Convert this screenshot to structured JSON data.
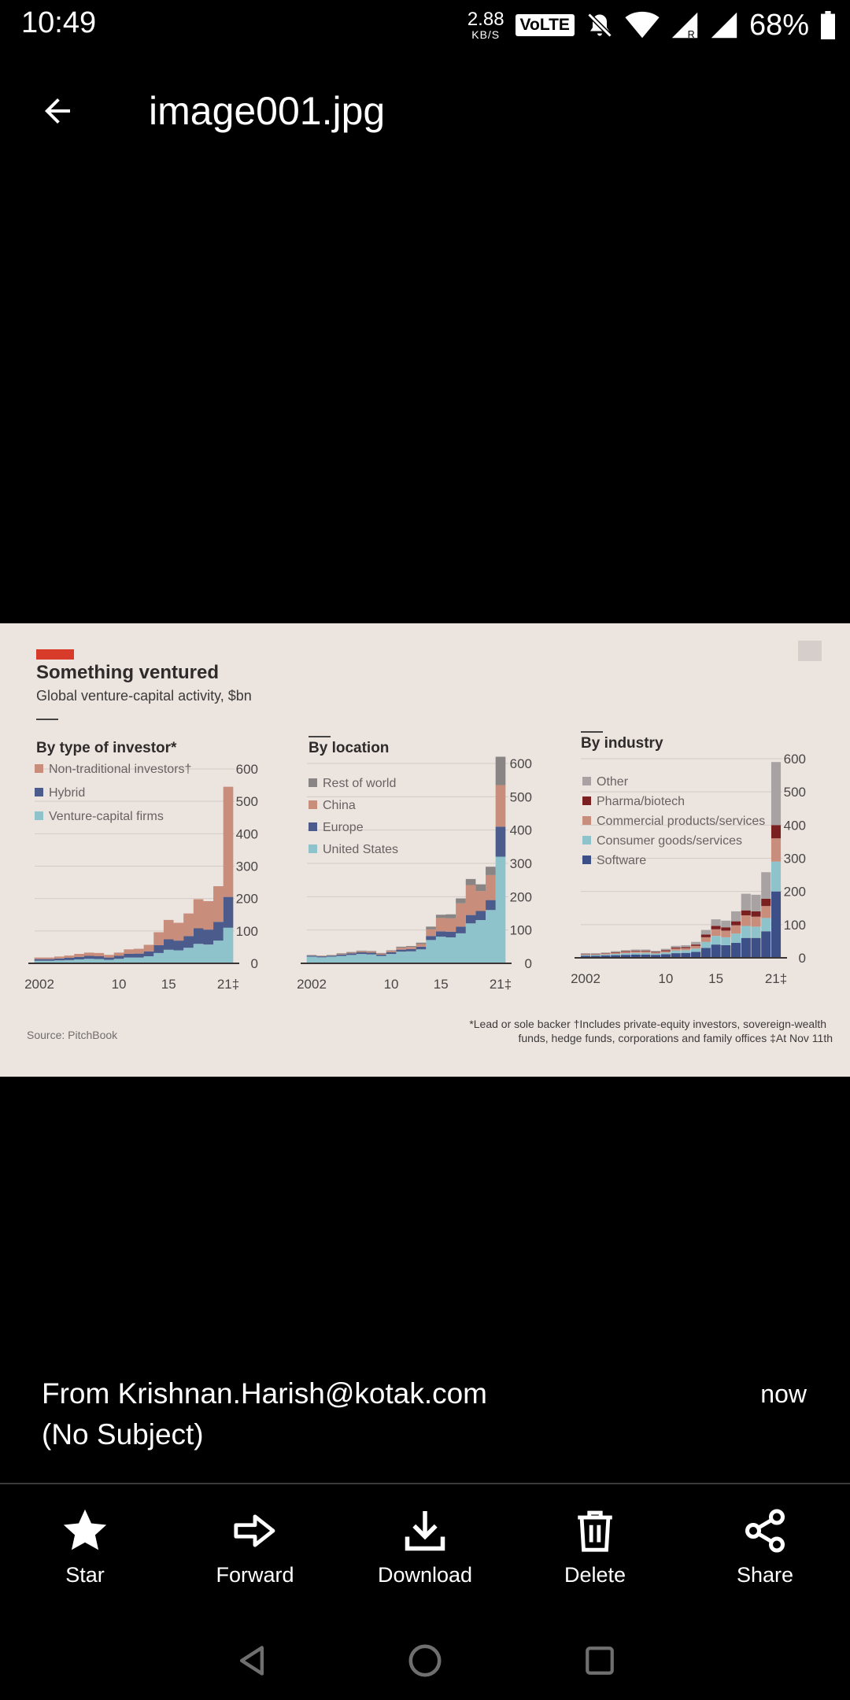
{
  "status_bar": {
    "time": "10:49",
    "speed_value": "2.88",
    "speed_unit": "KB/S",
    "volte": "VoLTE",
    "battery": "68%"
  },
  "app_bar": {
    "title": "image001.jpg"
  },
  "image": {
    "chart_data": [
      {
        "type": "area",
        "panel": "By type of investor*",
        "title": "Something ventured",
        "subtitle": "Global venture-capital activity, $bn",
        "x_tick_labels": [
          "2002",
          "10",
          "15",
          "21‡"
        ],
        "y_ticks": [
          "600",
          "500",
          "400",
          "300",
          "200",
          "100",
          "0"
        ],
        "ylim": [
          0,
          600
        ],
        "x": [
          2002,
          2003,
          2004,
          2005,
          2006,
          2007,
          2008,
          2009,
          2010,
          2011,
          2012,
          2013,
          2014,
          2015,
          2016,
          2017,
          2018,
          2019,
          2020,
          2021
        ],
        "series": [
          {
            "name": "Venture-capital firms",
            "color": "#8fc3cc",
            "values": [
              8,
              8,
              9,
              10,
              12,
              14,
              13,
              11,
              14,
              18,
              18,
              22,
              32,
              42,
              40,
              48,
              60,
              58,
              70,
              110
            ]
          },
          {
            "name": "Hybrid",
            "color": "#4a5b8c",
            "values": [
              5,
              5,
              6,
              7,
              8,
              9,
              9,
              7,
              9,
              11,
              12,
              15,
              24,
              32,
              30,
              36,
              48,
              46,
              58,
              95
            ]
          },
          {
            "name": "Non-traditional investors†",
            "color": "#c98d7c",
            "values": [
              5,
              5,
              6,
              7,
              9,
              10,
              10,
              8,
              10,
              14,
              15,
              20,
              40,
              60,
              55,
              70,
              90,
              88,
              110,
              340
            ]
          }
        ],
        "legend": [
          "Non-traditional investors†",
          "Hybrid",
          "Venture-capital firms"
        ]
      },
      {
        "type": "area",
        "panel": "By location",
        "x_tick_labels": [
          "2002",
          "10",
          "15",
          "21‡"
        ],
        "y_ticks": [
          "600",
          "500",
          "400",
          "300",
          "200",
          "100",
          "0"
        ],
        "ylim": [
          0,
          600
        ],
        "x": [
          2002,
          2003,
          2004,
          2005,
          2006,
          2007,
          2008,
          2009,
          2010,
          2011,
          2012,
          2013,
          2014,
          2015,
          2016,
          2017,
          2018,
          2019,
          2020,
          2021
        ],
        "series": [
          {
            "name": "United States",
            "color": "#8fc3cc",
            "values": [
              20,
              18,
              20,
              22,
              25,
              28,
              27,
              22,
              28,
              35,
              36,
              42,
              70,
              80,
              78,
              90,
              120,
              130,
              160,
              320
            ]
          },
          {
            "name": "Europe",
            "color": "#4a5b8c",
            "values": [
              3,
              3,
              3,
              4,
              5,
              5,
              5,
              4,
              5,
              6,
              7,
              8,
              12,
              16,
              17,
              20,
              25,
              27,
              30,
              90
            ]
          },
          {
            "name": "China",
            "color": "#c98d7c",
            "values": [
              1,
              1,
              1,
              2,
              2,
              3,
              3,
              3,
              4,
              6,
              6,
              8,
              20,
              40,
              40,
              70,
              90,
              60,
              75,
              125
            ]
          },
          {
            "name": "Rest of world",
            "color": "#8a8585",
            "values": [
              1,
              1,
              1,
              2,
              2,
              2,
              2,
              2,
              2,
              3,
              3,
              4,
              8,
              10,
              12,
              15,
              18,
              20,
              25,
              85
            ]
          }
        ],
        "legend": [
          "Rest of world",
          "China",
          "Europe",
          "United States"
        ]
      },
      {
        "type": "bar",
        "panel": "By industry",
        "x_tick_labels": [
          "2002",
          "10",
          "15",
          "21‡"
        ],
        "y_ticks": [
          "600",
          "500",
          "400",
          "300",
          "200",
          "100",
          "0"
        ],
        "ylim": [
          0,
          600
        ],
        "x": [
          2002,
          2003,
          2004,
          2005,
          2006,
          2007,
          2008,
          2009,
          2010,
          2011,
          2012,
          2013,
          2014,
          2015,
          2016,
          2017,
          2018,
          2019,
          2020,
          2021
        ],
        "series": [
          {
            "name": "Software",
            "color": "#3d4f87",
            "values": [
              6,
              6,
              7,
              8,
              9,
              10,
              10,
              9,
              11,
              14,
              15,
              18,
              30,
              40,
              38,
              45,
              60,
              60,
              80,
              200
            ]
          },
          {
            "name": "Consumer goods/services",
            "color": "#8fc3cc",
            "values": [
              3,
              3,
              3,
              4,
              5,
              5,
              5,
              4,
              5,
              8,
              8,
              10,
              18,
              26,
              24,
              28,
              36,
              34,
              40,
              90
            ]
          },
          {
            "name": "Commercial products/services",
            "color": "#c98d7c",
            "values": [
              2,
              2,
              3,
              3,
              4,
              4,
              4,
              3,
              4,
              6,
              6,
              8,
              14,
              20,
              20,
              25,
              32,
              30,
              36,
              70
            ]
          },
          {
            "name": "Pharma/biotech",
            "color": "#7a2020",
            "values": [
              1,
              1,
              1,
              2,
              2,
              2,
              2,
              2,
              3,
              3,
              3,
              4,
              8,
              10,
              10,
              12,
              15,
              16,
              22,
              40
            ]
          },
          {
            "name": "Other",
            "color": "#a8a2a2",
            "values": [
              2,
              2,
              2,
              3,
              3,
              4,
              4,
              3,
              4,
              5,
              6,
              8,
              14,
              20,
              20,
              30,
              50,
              50,
              80,
              190
            ]
          }
        ],
        "legend": [
          "Other",
          "Pharma/biotech",
          "Commercial products/services",
          "Consumer goods/services",
          "Software"
        ]
      }
    ],
    "footnote_line1": "*Lead or sole backer   †Includes private-equity investors, sovereign-wealth",
    "footnote_line2": "funds, hedge funds, corporations and family offices   ‡At Nov 11th",
    "source": "Source: PitchBook"
  },
  "message": {
    "from": "From Krishnan.Harish@kotak.com",
    "subject": "(No Subject)",
    "time": "now"
  },
  "actions": {
    "star": "Star",
    "forward": "Forward",
    "download": "Download",
    "delete": "Delete",
    "share": "Share"
  }
}
